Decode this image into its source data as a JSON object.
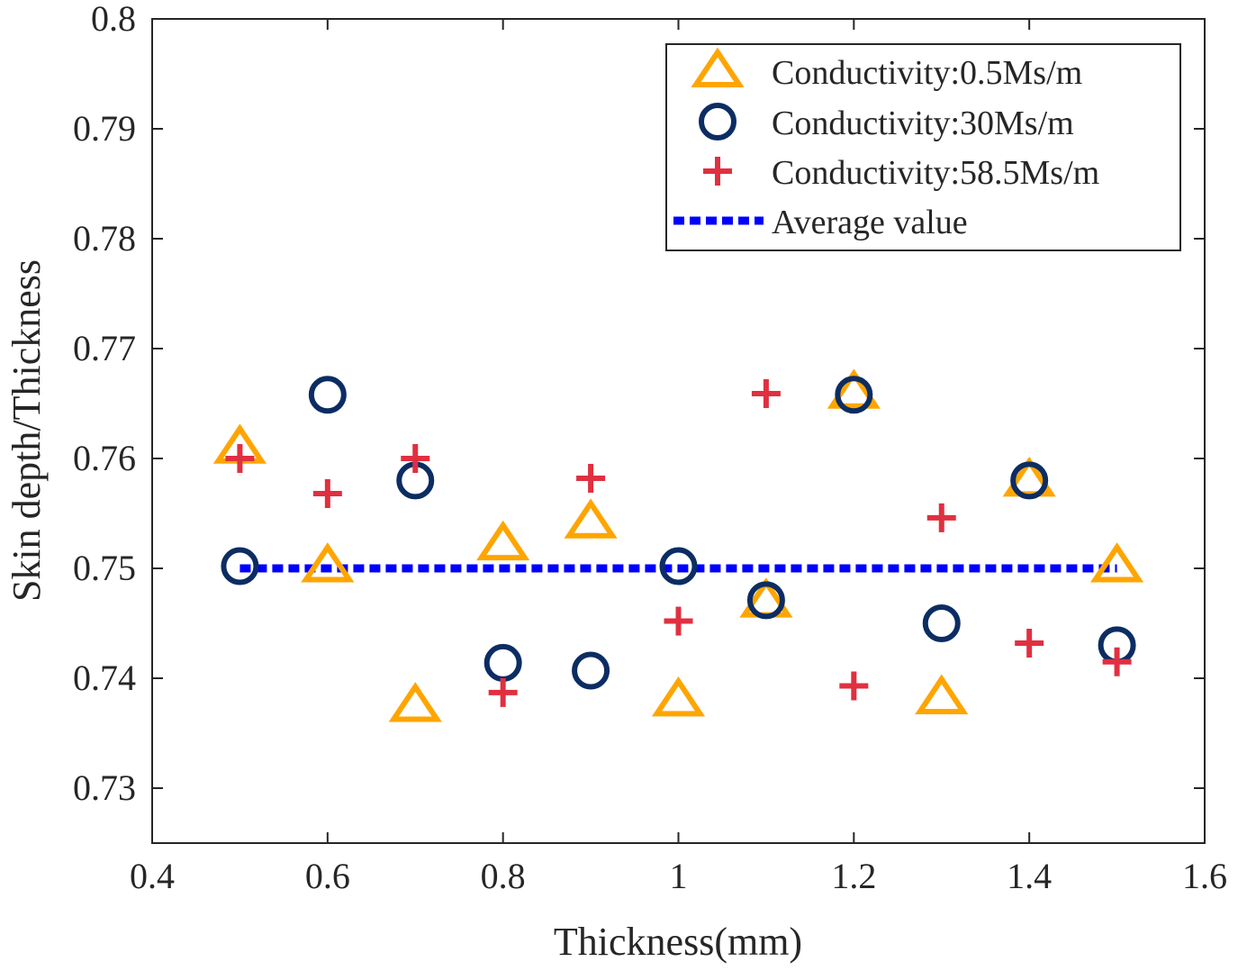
{
  "chart_data": {
    "type": "scatter",
    "title": "",
    "xlabel": "Thickness(mm)",
    "ylabel": "Skin depth/Thickness",
    "xlim": [
      0.4,
      1.6
    ],
    "ylim": [
      0.725,
      0.8
    ],
    "xticks": [
      0.4,
      0.6,
      0.8,
      1,
      1.2,
      1.4,
      1.6
    ],
    "xtick_labels": [
      "0.4",
      "0.6",
      "0.8",
      "1",
      "1.2",
      "1.4",
      "1.6"
    ],
    "yticks": [
      0.73,
      0.74,
      0.75,
      0.76,
      0.77,
      0.78,
      0.79,
      0.8
    ],
    "ytick_labels": [
      "0.73",
      "0.74",
      "0.75",
      "0.76",
      "0.77",
      "0.78",
      "0.79",
      "0.8"
    ],
    "grid": false,
    "legend_position": "top-right",
    "x": [
      0.5,
      0.6,
      0.7,
      0.8,
      0.9,
      1.0,
      1.1,
      1.2,
      1.3,
      1.4,
      1.5
    ],
    "series": [
      {
        "name": "Conductivity:0.5Ms/m",
        "marker": "triangle",
        "color": "#FFA500",
        "values": [
          0.761,
          0.7502,
          0.7375,
          0.7522,
          0.7542,
          0.738,
          0.747,
          0.766,
          0.7382,
          0.758,
          0.7502
        ]
      },
      {
        "name": "Conductivity:30Ms/m",
        "marker": "circle",
        "color": "#0C2D63",
        "values": [
          0.7502,
          0.7658,
          0.758,
          0.7414,
          0.7407,
          0.7502,
          0.7471,
          0.7658,
          0.745,
          0.758,
          0.743
        ]
      },
      {
        "name": "Conductivity:58.5Ms/m",
        "marker": "plus",
        "color": "#E03040",
        "values": [
          0.76,
          0.7568,
          0.76,
          0.7387,
          0.7582,
          0.7452,
          0.7659,
          0.7393,
          0.7546,
          0.7432,
          0.7415
        ]
      },
      {
        "name": "Average value",
        "type": "line",
        "style": "dotted",
        "color": "#0000FF",
        "x": [
          0.5,
          1.5
        ],
        "values": [
          0.75,
          0.75
        ]
      }
    ]
  }
}
